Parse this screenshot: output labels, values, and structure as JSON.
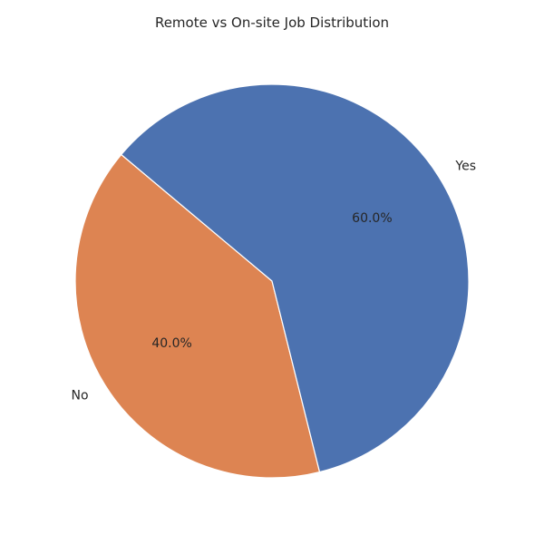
{
  "chart_data": {
    "type": "pie",
    "title": "Remote vs On-site Job Distribution",
    "categories": [
      "No",
      "Yes"
    ],
    "values": [
      40.0,
      60.0
    ],
    "percent_labels": [
      "40.0%",
      "60.0%"
    ],
    "colors": [
      "#dd8452",
      "#4c72b0"
    ],
    "start_angle_deg": 140,
    "legend": "none"
  }
}
